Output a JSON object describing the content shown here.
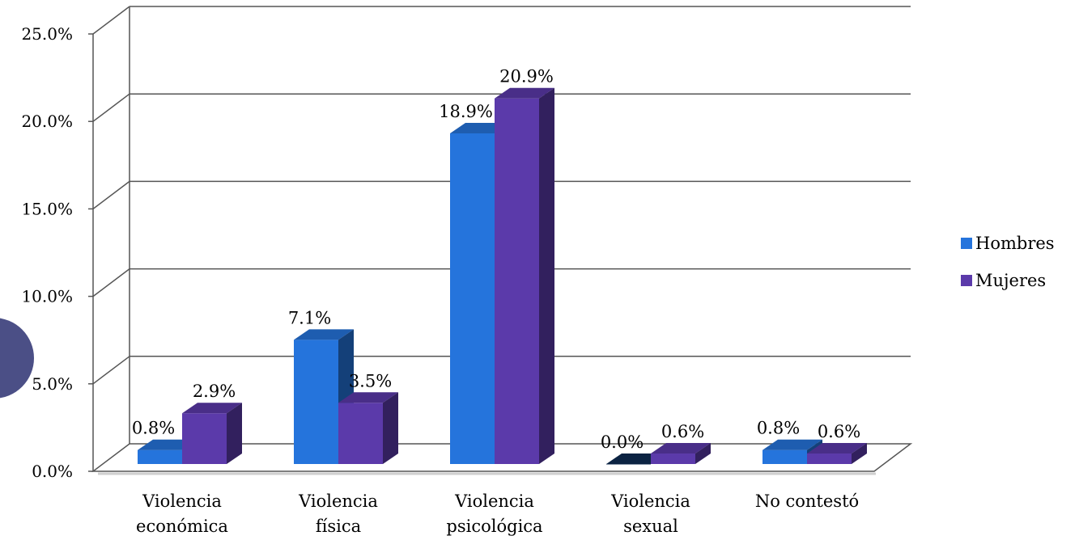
{
  "chart_data": {
    "type": "bar",
    "categories": [
      [
        "Violencia",
        "económica"
      ],
      [
        "Violencia",
        "física"
      ],
      [
        "Violencia",
        "psicológica"
      ],
      [
        "Violencia",
        "sexual"
      ],
      [
        "No contestó"
      ]
    ],
    "series": [
      {
        "name": "Hombres",
        "values": [
          0.8,
          7.1,
          18.9,
          0.0,
          0.8
        ],
        "labels": [
          "0.8%",
          "7.1%",
          "18.9%",
          "0.0%",
          "0.8%"
        ],
        "color": "#2574dc"
      },
      {
        "name": "Mujeres",
        "values": [
          2.9,
          3.5,
          20.9,
          0.6,
          0.6
        ],
        "labels": [
          "2.9%",
          "3.5%",
          "20.9%",
          "0.6%",
          "0.6%"
        ],
        "color": "#5b3aaa"
      }
    ],
    "yticks": [
      "0.0%",
      "5.0%",
      "10.0%",
      "15.0%",
      "20.0%",
      "25.0%"
    ],
    "ylim": [
      0,
      25
    ],
    "grid": true,
    "legend_position": "right",
    "three_d": true
  },
  "colors": {
    "hombres": "#2574dc",
    "mujeres": "#5b3aaa",
    "grid": "#555555",
    "decor_circle": "#4b4f86"
  },
  "decor": {
    "circle": "slide-decoration-circle"
  }
}
